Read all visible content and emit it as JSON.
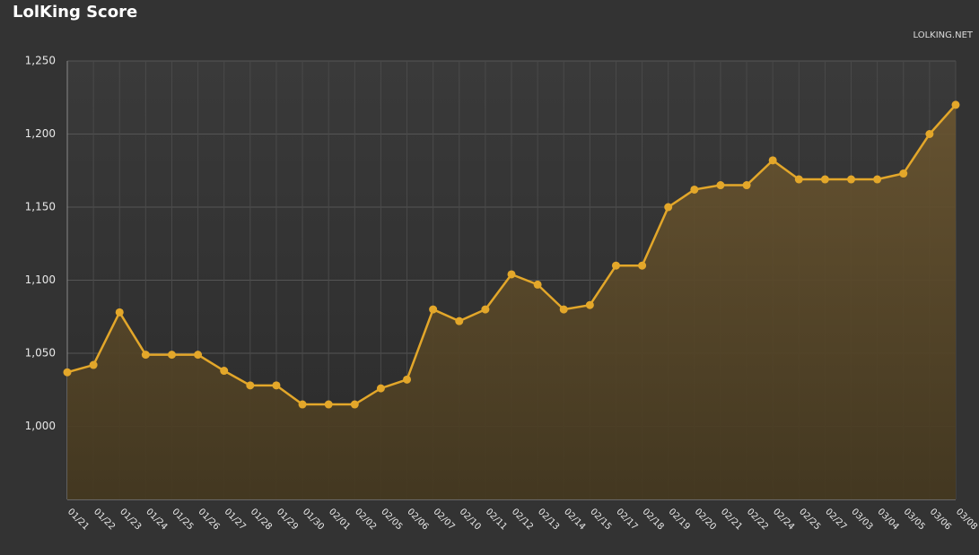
{
  "chart_data": {
    "type": "line",
    "title": "LolKing Score",
    "credit": "LOLKING.NET",
    "categories": [
      "01/21",
      "01/22",
      "01/23",
      "01/24",
      "01/25",
      "01/26",
      "01/27",
      "01/28",
      "01/29",
      "01/30",
      "02/01",
      "02/02",
      "02/05",
      "02/06",
      "02/07",
      "02/10",
      "02/11",
      "02/12",
      "02/13",
      "02/14",
      "02/15",
      "02/17",
      "02/18",
      "02/19",
      "02/20",
      "02/21",
      "02/22",
      "02/24",
      "02/25",
      "02/27",
      "03/03",
      "03/04",
      "03/05",
      "03/06",
      "03/08"
    ],
    "values": [
      1037,
      1042,
      1078,
      1049,
      1049,
      1049,
      1038,
      1028,
      1028,
      1015,
      1015,
      1015,
      1026,
      1032,
      1080,
      1072,
      1080,
      1104,
      1097,
      1080,
      1083,
      1110,
      1110,
      1150,
      1162,
      1165,
      1165,
      1182,
      1169,
      1169,
      1169,
      1169,
      1173,
      1200,
      1220
    ],
    "color": "#e3a72a",
    "ylim": [
      950,
      1250
    ],
    "yticks": [
      {
        "value": 1000,
        "label": "1,000"
      },
      {
        "value": 1050,
        "label": "1,050"
      },
      {
        "value": 1100,
        "label": "1,100"
      },
      {
        "value": 1150,
        "label": "1,150"
      },
      {
        "value": 1200,
        "label": "1,200"
      },
      {
        "value": 1250,
        "label": "1,250"
      }
    ],
    "grid": true
  }
}
